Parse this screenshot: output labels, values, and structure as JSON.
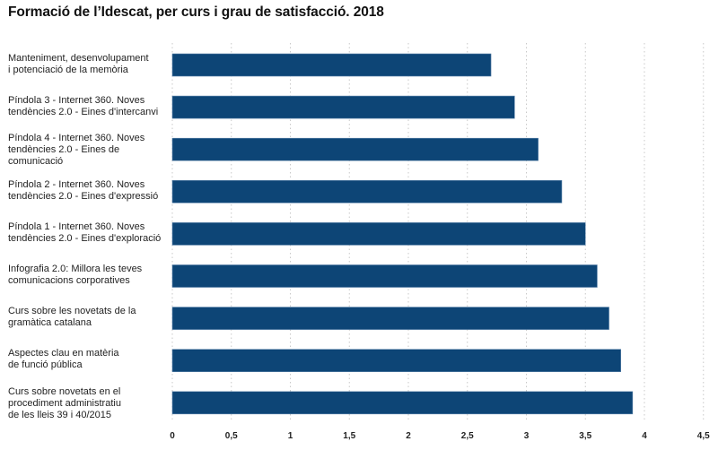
{
  "chart_data": {
    "type": "bar",
    "orientation": "horizontal",
    "title": "Formació de l’Idescat, per curs i grau de satisfacció. 2018",
    "xlabel": "",
    "ylabel": "",
    "xlim": [
      0,
      4.5
    ],
    "xticks": [
      "0",
      "0,5",
      "1",
      "1,5",
      "2",
      "2,5",
      "3",
      "3,5",
      "4",
      "4,5"
    ],
    "xtick_values": [
      0,
      0.5,
      1,
      1.5,
      2,
      2.5,
      3,
      3.5,
      4,
      4.5
    ],
    "grid": "vertical dotted",
    "bar_color": "#0d4576",
    "categories": [
      [
        "Manteniment, desenvolupament",
        "i potenciació de la memòria"
      ],
      [
        "Píndola 3 - Internet 360. Noves",
        "tendències 2.0 - Eines d'intercanvi"
      ],
      [
        "Píndola 4 - Internet 360. Noves",
        "tendències 2.0 - Eines de",
        "comunicació"
      ],
      [
        "Píndola 2 - Internet 360. Noves",
        "tendències 2.0 - Eines d'expressió"
      ],
      [
        "Píndola 1 - Internet 360. Noves",
        "tendències 2.0 - Eines d'exploració"
      ],
      [
        "Infografia 2.0: Millora les teves",
        "comunicacions corporatives"
      ],
      [
        "Curs sobre les novetats de la",
        "gramàtica catalana"
      ],
      [
        "Aspectes clau en matèria",
        "de funció pública"
      ],
      [
        "Curs sobre novetats en el",
        "procediment administratiu",
        "de les lleis 39 i 40/2015"
      ]
    ],
    "values": [
      2.7,
      2.9,
      3.1,
      3.3,
      3.5,
      3.6,
      3.7,
      3.8,
      3.9
    ]
  }
}
